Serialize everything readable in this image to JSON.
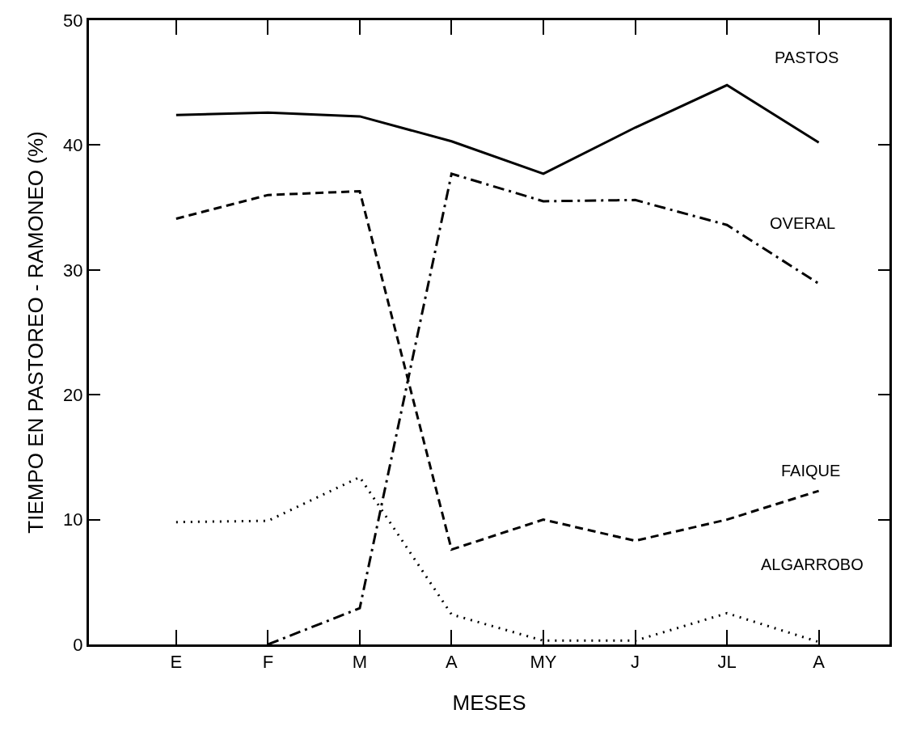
{
  "chart_data": {
    "type": "line",
    "xlabel": "MESES",
    "ylabel": "TIEMPO EN PASTOREO - RAMONEO (%)",
    "categories": [
      "E",
      "F",
      "M",
      "A",
      "MY",
      "J",
      "JL",
      "A"
    ],
    "series": [
      {
        "name": "PASTOS",
        "color": "#000000",
        "line_style": "solid",
        "values": [
          42.4,
          42.6,
          42.3,
          40.3,
          37.7,
          41.4,
          44.8,
          40.2
        ]
      },
      {
        "name": "OVERAL",
        "color": "#000000",
        "line_style": "dashdot",
        "values": [
          null,
          0,
          2.9,
          37.7,
          35.5,
          35.6,
          33.6,
          28.9
        ]
      },
      {
        "name": "FAIQUE",
        "color": "#000000",
        "line_style": "dashed",
        "values": [
          34.1,
          36.0,
          36.3,
          7.6,
          10.0,
          8.3,
          10.0,
          12.3
        ]
      },
      {
        "name": "ALGARROBO",
        "color": "#000000",
        "line_style": "dotted",
        "values": [
          9.8,
          9.9,
          13.4,
          2.4,
          0.3,
          0.3,
          2.5,
          0.2
        ]
      }
    ],
    "ylim": [
      0,
      50
    ],
    "yticks": [
      0,
      10,
      20,
      30,
      40,
      50
    ],
    "grid": false,
    "marker": "none"
  }
}
